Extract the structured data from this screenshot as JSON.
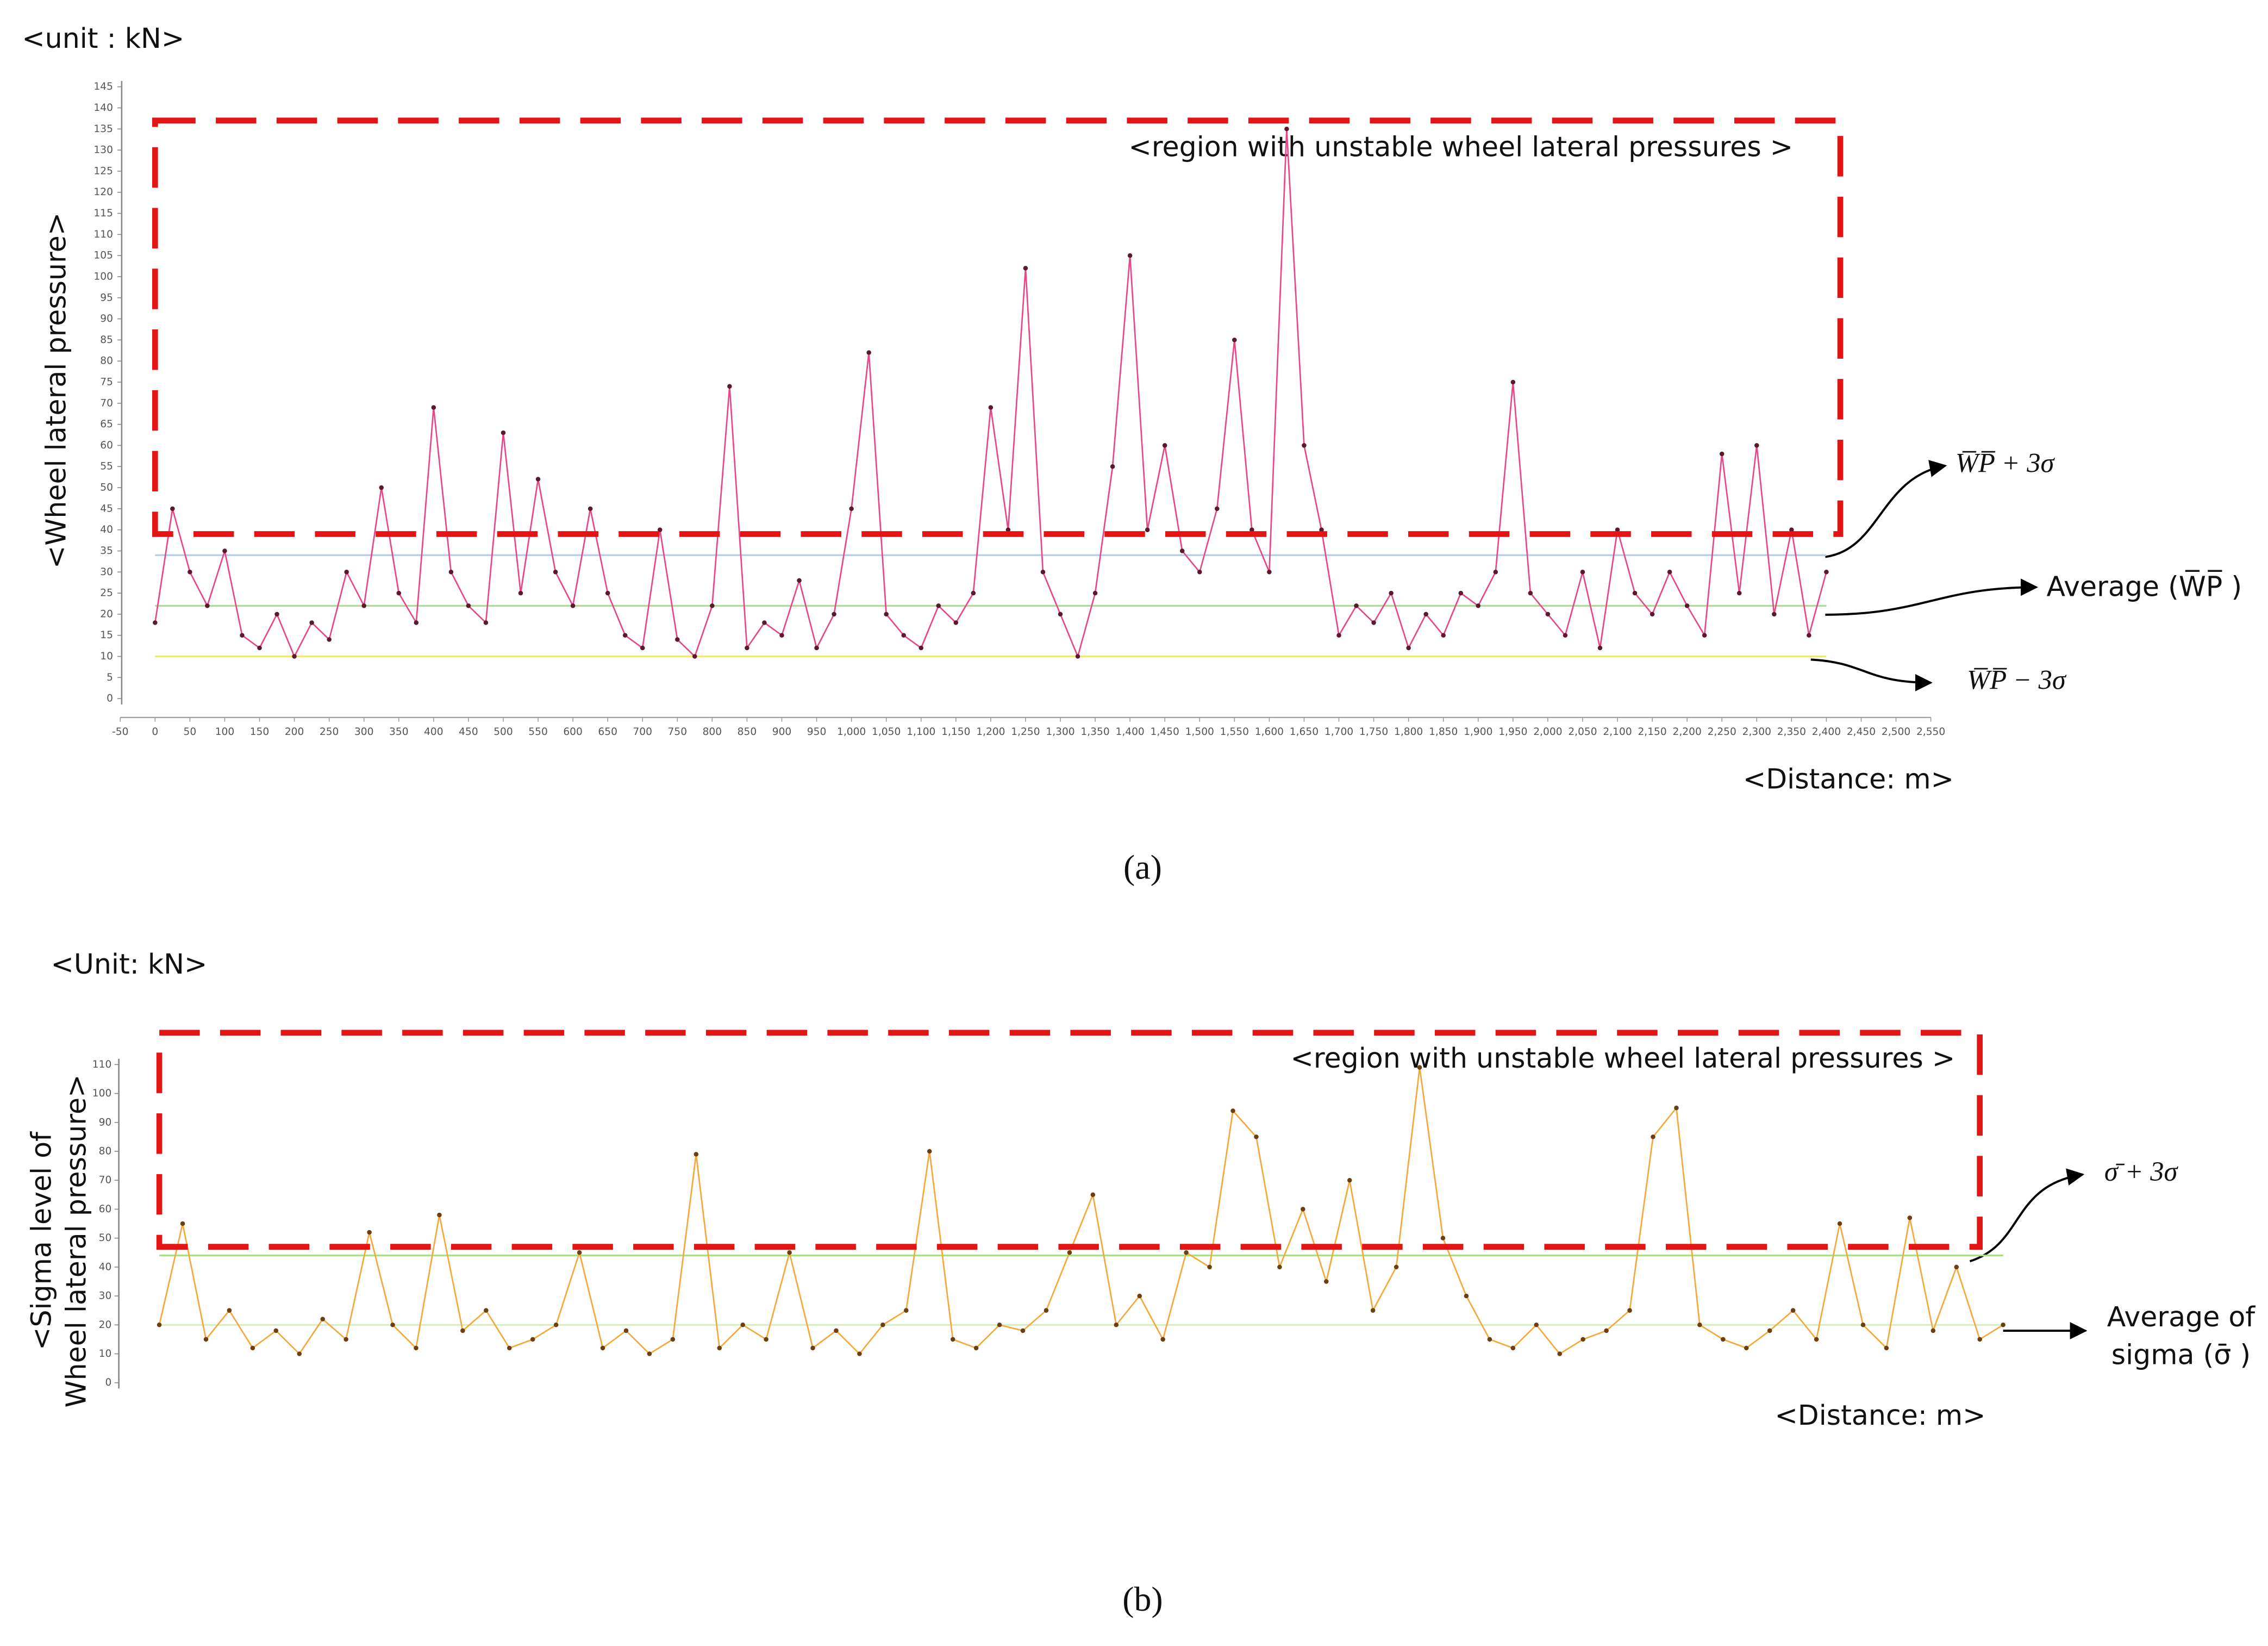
{
  "chart_data": [
    {
      "type": "line",
      "unit_label": "<unit : kN>",
      "y_label": "<Wheel lateral pressure>",
      "x_label": "<Distance: m>",
      "panel_label": "(a)",
      "annotation": "<region with unstable wheel lateral pressures >",
      "reference_labels": [
        "W̅P̅ + 3σ",
        "Average (W̅P̅ )",
        "W̅P̅ − 3σ"
      ],
      "line_color": "#e8468a",
      "marker_color": "#5a1a2c",
      "reference_lines": [
        {
          "value": 34,
          "color": "#b5cde6"
        },
        {
          "value": 22,
          "color": "#a8e08a"
        },
        {
          "value": 10,
          "color": "#f2e27a"
        }
      ],
      "region": {
        "x": [
          0,
          2420
        ],
        "y": [
          39,
          137
        ],
        "color": "#e31414"
      },
      "x": [
        0,
        25,
        50,
        75,
        100,
        125,
        150,
        175,
        200,
        225,
        250,
        275,
        300,
        325,
        350,
        375,
        400,
        425,
        450,
        475,
        500,
        525,
        550,
        575,
        600,
        625,
        650,
        675,
        700,
        725,
        750,
        775,
        800,
        825,
        850,
        875,
        900,
        925,
        950,
        975,
        1000,
        1025,
        1050,
        1075,
        1100,
        1125,
        1150,
        1175,
        1200,
        1225,
        1250,
        1275,
        1300,
        1325,
        1350,
        1375,
        1400,
        1425,
        1450,
        1475,
        1500,
        1525,
        1550,
        1575,
        1600,
        1625,
        1650,
        1675,
        1700,
        1725,
        1750,
        1775,
        1800,
        1825,
        1850,
        1875,
        1900,
        1925,
        1950,
        1975,
        2000,
        2025,
        2050,
        2075,
        2100,
        2125,
        2150,
        2175,
        2200,
        2225,
        2250,
        2275,
        2300,
        2325,
        2350,
        2375,
        2400
      ],
      "values": [
        18,
        45,
        30,
        22,
        35,
        15,
        12,
        20,
        10,
        18,
        14,
        30,
        22,
        50,
        25,
        18,
        69,
        30,
        22,
        18,
        63,
        25,
        52,
        30,
        22,
        45,
        25,
        15,
        12,
        40,
        14,
        10,
        22,
        74,
        12,
        18,
        15,
        28,
        12,
        20,
        45,
        82,
        20,
        15,
        12,
        22,
        18,
        25,
        69,
        40,
        102,
        30,
        20,
        10,
        25,
        55,
        105,
        40,
        60,
        35,
        30,
        45,
        85,
        40,
        30,
        135,
        60,
        40,
        15,
        22,
        18,
        25,
        12,
        20,
        15,
        25,
        22,
        30,
        75,
        25,
        20,
        15,
        30,
        12,
        40,
        25,
        20,
        30,
        22,
        15,
        58,
        25,
        60,
        20,
        40,
        15,
        30
      ],
      "xlim": [
        -50,
        2550
      ],
      "ylim": [
        0,
        145
      ],
      "xticks": [
        -50,
        0,
        50,
        100,
        150,
        200,
        250,
        300,
        350,
        400,
        450,
        500,
        550,
        600,
        650,
        700,
        750,
        800,
        850,
        900,
        950,
        {
          "value": 1000,
          "label": "1,000"
        },
        {
          "value": 1050,
          "label": "1,050"
        },
        {
          "value": 1100,
          "label": "1,100"
        },
        {
          "value": 1150,
          "label": "1,150"
        },
        {
          "value": 1200,
          "label": "1,200"
        },
        {
          "value": 1250,
          "label": "1,250"
        },
        {
          "value": 1300,
          "label": "1,300"
        },
        {
          "value": 1350,
          "label": "1,350"
        },
        {
          "value": 1400,
          "label": "1,400"
        },
        {
          "value": 1450,
          "label": "1,450"
        },
        {
          "value": 1500,
          "label": "1,500"
        },
        {
          "value": 1550,
          "label": "1,550"
        },
        {
          "value": 1600,
          "label": "1,600"
        },
        {
          "value": 1650,
          "label": "1,650"
        },
        {
          "value": 1700,
          "label": "1,700"
        },
        {
          "value": 1750,
          "label": "1,750"
        },
        {
          "value": 1800,
          "label": "1,800"
        },
        {
          "value": 1850,
          "label": "1,850"
        },
        {
          "value": 1900,
          "label": "1,900"
        },
        {
          "value": 1950,
          "label": "1,950"
        },
        {
          "value": 2000,
          "label": "2,000"
        },
        {
          "value": 2050,
          "label": "2,050"
        },
        {
          "value": 2100,
          "label": "2,100"
        },
        {
          "value": 2150,
          "label": "2,150"
        },
        {
          "value": 2200,
          "label": "2,200"
        },
        {
          "value": 2250,
          "label": "2,250"
        },
        {
          "value": 2300,
          "label": "2,300"
        },
        {
          "value": 2350,
          "label": "2,350"
        },
        {
          "value": 2400,
          "label": "2,400"
        },
        {
          "value": 2450,
          "label": "2,450"
        },
        {
          "value": 2500,
          "label": "2,500"
        },
        {
          "value": 2550,
          "label": "2,550"
        }
      ],
      "yticks": [
        0,
        5,
        10,
        15,
        20,
        25,
        30,
        35,
        40,
        45,
        50,
        55,
        60,
        65,
        70,
        75,
        80,
        85,
        90,
        95,
        100,
        105,
        110,
        115,
        120,
        125,
        130,
        135,
        140,
        145
      ]
    },
    {
      "type": "line",
      "unit_label": "<Unit: kN>",
      "y_label": [
        "<Sigma level of",
        "Wheel lateral pressure>"
      ],
      "x_label": "<Distance: m>",
      "panel_label": "(b)",
      "annotation": "<region with unstable wheel lateral pressures >",
      "reference_labels": [
        "σ̄ + 3σ",
        [
          "Average of",
          "sigma (σ̄ )"
        ]
      ],
      "line_color": "#f5a83a",
      "marker_color": "#6b3f12",
      "reference_lines": [
        {
          "value": 44,
          "color": "#a8e08a"
        },
        {
          "value": 20,
          "color": "#d8ecc8"
        }
      ],
      "region": {
        "x": [
          0,
          78
        ],
        "y": [
          47,
          121
        ],
        "color": "#e31414"
      },
      "values": [
        20,
        55,
        15,
        25,
        12,
        18,
        10,
        22,
        15,
        52,
        20,
        12,
        58,
        18,
        25,
        12,
        15,
        20,
        45,
        12,
        18,
        10,
        15,
        79,
        12,
        20,
        15,
        45,
        12,
        18,
        10,
        20,
        25,
        80,
        15,
        12,
        20,
        18,
        25,
        45,
        65,
        20,
        30,
        15,
        45,
        40,
        94,
        85,
        40,
        60,
        35,
        70,
        25,
        40,
        109,
        50,
        30,
        15,
        12,
        20,
        10,
        15,
        18,
        25,
        85,
        95,
        20,
        15,
        12,
        18,
        25,
        15,
        55,
        20,
        12,
        57,
        18,
        40,
        15,
        20
      ],
      "ylim": [
        0,
        110
      ],
      "yticks": [
        0,
        10,
        20,
        30,
        40,
        50,
        60,
        70,
        80,
        90,
        100,
        110
      ]
    }
  ]
}
